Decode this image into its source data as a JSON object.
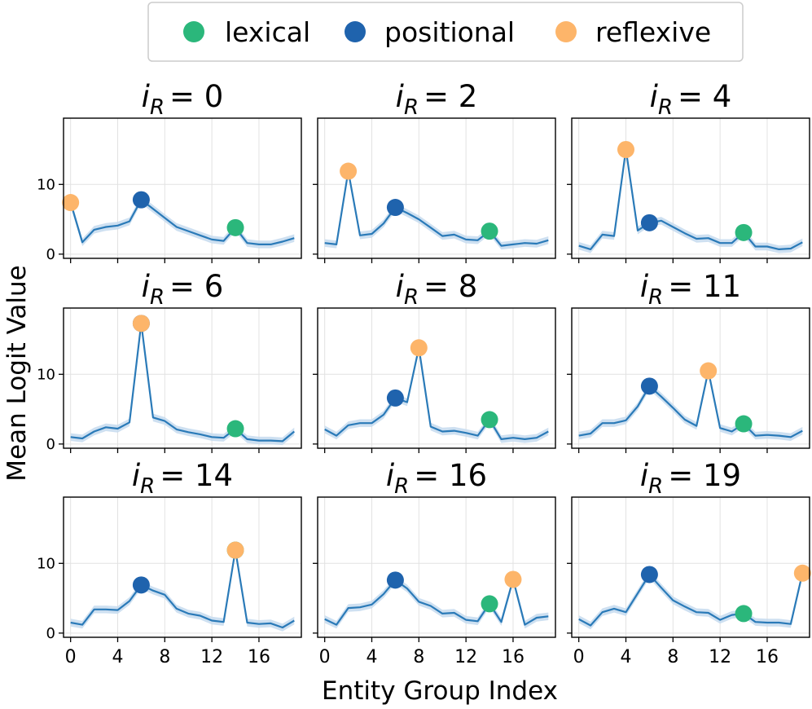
{
  "figure": {
    "ylabel": "Mean Logit Value",
    "xlabel": "Entity Group Index"
  },
  "legend": [
    {
      "label": "lexical",
      "color": "#2bb77b"
    },
    {
      "label": "positional",
      "color": "#1f63ad"
    },
    {
      "label": "reflexive",
      "color": "#fdb56a"
    }
  ],
  "colors": {
    "line": "#2a7ab8",
    "band": "#c6dbef",
    "grid": "#e2e2e2"
  },
  "chart_data": [
    {
      "type": "line",
      "title_var": "i",
      "title_sub": "R",
      "title_eq": "= 0",
      "x": [
        0,
        1,
        2,
        3,
        4,
        5,
        6,
        7,
        8,
        9,
        10,
        11,
        12,
        13,
        14,
        15,
        16,
        17,
        18,
        19
      ],
      "y": [
        7.4,
        1.7,
        3.5,
        3.9,
        4.1,
        4.7,
        7.8,
        6.5,
        5.2,
        3.9,
        3.3,
        2.7,
        2.1,
        1.9,
        3.8,
        1.6,
        1.4,
        1.4,
        1.8,
        2.3
      ],
      "markers": {
        "lexical": [
          14,
          3.8
        ],
        "positional": [
          6,
          7.8
        ],
        "reflexive": [
          0,
          7.4
        ]
      },
      "xticks": [
        0,
        4,
        8,
        12,
        16
      ],
      "yticks": [
        0,
        10
      ],
      "ylim": [
        -0.6,
        19.5
      ],
      "xlim": [
        -0.6,
        19.6
      ]
    },
    {
      "type": "line",
      "title_var": "i",
      "title_sub": "R",
      "title_eq": "= 2",
      "x": [
        0,
        1,
        2,
        3,
        4,
        5,
        6,
        7,
        8,
        9,
        10,
        11,
        12,
        13,
        14,
        15,
        16,
        17,
        18,
        19
      ],
      "y": [
        1.6,
        1.4,
        11.9,
        2.7,
        2.9,
        4.4,
        6.7,
        5.9,
        5.0,
        3.8,
        2.6,
        2.8,
        2.1,
        2.0,
        3.3,
        1.2,
        1.4,
        1.6,
        1.5,
        2.0
      ],
      "markers": {
        "lexical": [
          14,
          3.3
        ],
        "positional": [
          6,
          6.7
        ],
        "reflexive": [
          2,
          11.9
        ]
      },
      "xticks": [
        0,
        4,
        8,
        12,
        16
      ],
      "yticks": [
        0,
        10
      ],
      "ylim": [
        -0.6,
        19.5
      ],
      "xlim": [
        -0.6,
        19.6
      ]
    },
    {
      "type": "line",
      "title_var": "i",
      "title_sub": "R",
      "title_eq": "= 4",
      "x": [
        0,
        1,
        2,
        3,
        4,
        5,
        6,
        7,
        8,
        9,
        10,
        11,
        12,
        13,
        14,
        15,
        16,
        17,
        18,
        19
      ],
      "y": [
        1.2,
        0.7,
        2.8,
        2.6,
        15.0,
        3.4,
        4.5,
        4.8,
        3.9,
        3.0,
        2.2,
        2.3,
        1.6,
        1.6,
        3.1,
        1.1,
        1.1,
        0.7,
        0.8,
        1.7
      ],
      "markers": {
        "lexical": [
          14,
          3.1
        ],
        "positional": [
          6,
          4.5
        ],
        "reflexive": [
          4,
          15.0
        ]
      },
      "xticks": [
        0,
        4,
        8,
        12,
        16
      ],
      "yticks": [
        0,
        10
      ],
      "ylim": [
        -0.6,
        19.5
      ],
      "xlim": [
        -0.6,
        19.6
      ]
    },
    {
      "type": "line",
      "title_var": "i",
      "title_sub": "R",
      "title_eq": "= 6",
      "x": [
        0,
        1,
        2,
        3,
        4,
        5,
        6,
        7,
        8,
        9,
        10,
        11,
        12,
        13,
        14,
        15,
        16,
        17,
        18,
        19
      ],
      "y": [
        1.0,
        0.8,
        1.8,
        2.4,
        2.2,
        3.1,
        17.3,
        3.8,
        3.3,
        2.1,
        1.7,
        1.4,
        1.0,
        0.9,
        2.2,
        0.7,
        0.5,
        0.5,
        0.4,
        1.8
      ],
      "markers": {
        "lexical": [
          14,
          2.2
        ],
        "positional": [
          6,
          17.3
        ],
        "reflexive": [
          6,
          17.3
        ]
      },
      "xticks": [
        0,
        4,
        8,
        12,
        16
      ],
      "yticks": [
        0,
        10
      ],
      "ylim": [
        -0.6,
        19.5
      ],
      "xlim": [
        -0.6,
        19.6
      ]
    },
    {
      "type": "line",
      "title_var": "i",
      "title_sub": "R",
      "title_eq": "= 8",
      "x": [
        0,
        1,
        2,
        3,
        4,
        5,
        6,
        7,
        8,
        9,
        10,
        11,
        12,
        13,
        14,
        15,
        16,
        17,
        18,
        19
      ],
      "y": [
        2.1,
        1.2,
        2.7,
        3.0,
        3.0,
        4.2,
        6.6,
        6.0,
        13.8,
        2.5,
        1.8,
        1.9,
        1.6,
        1.2,
        3.5,
        0.7,
        0.9,
        0.7,
        0.9,
        1.8
      ],
      "markers": {
        "lexical": [
          14,
          3.5
        ],
        "positional": [
          6,
          6.6
        ],
        "reflexive": [
          8,
          13.8
        ]
      },
      "xticks": [
        0,
        4,
        8,
        12,
        16
      ],
      "yticks": [
        0,
        10
      ],
      "ylim": [
        -0.6,
        19.5
      ],
      "xlim": [
        -0.6,
        19.6
      ]
    },
    {
      "type": "line",
      "title_var": "i",
      "title_sub": "R",
      "title_eq": "= 11",
      "x": [
        0,
        1,
        2,
        3,
        4,
        5,
        6,
        7,
        8,
        9,
        10,
        11,
        12,
        13,
        14,
        15,
        16,
        17,
        18,
        19
      ],
      "y": [
        1.2,
        1.5,
        3.0,
        3.0,
        3.4,
        5.4,
        8.3,
        6.8,
        5.2,
        3.5,
        2.6,
        10.5,
        2.3,
        1.8,
        2.9,
        1.2,
        1.3,
        1.2,
        1.0,
        1.9
      ],
      "markers": {
        "lexical": [
          14,
          2.9
        ],
        "positional": [
          6,
          8.3
        ],
        "reflexive": [
          11,
          10.5
        ]
      },
      "xticks": [
        0,
        4,
        8,
        12,
        16
      ],
      "yticks": [
        0,
        10
      ],
      "ylim": [
        -0.6,
        19.5
      ],
      "xlim": [
        -0.6,
        19.6
      ]
    },
    {
      "type": "line",
      "title_var": "i",
      "title_sub": "R",
      "title_eq": "= 14",
      "x": [
        0,
        1,
        2,
        3,
        4,
        5,
        6,
        7,
        8,
        9,
        10,
        11,
        12,
        13,
        14,
        15,
        16,
        17,
        18,
        19
      ],
      "y": [
        1.5,
        1.2,
        3.4,
        3.4,
        3.3,
        4.6,
        6.9,
        6.1,
        5.5,
        3.5,
        2.8,
        2.5,
        1.8,
        1.6,
        11.9,
        1.5,
        1.3,
        1.4,
        0.8,
        1.8
      ],
      "markers": {
        "lexical": [
          14,
          11.9
        ],
        "positional": [
          6,
          6.9
        ],
        "reflexive": [
          14,
          11.9
        ]
      },
      "xticks": [
        0,
        4,
        8,
        12,
        16
      ],
      "yticks": [
        0,
        10
      ],
      "ylim": [
        -0.6,
        19.5
      ],
      "xlim": [
        -0.6,
        19.6
      ]
    },
    {
      "type": "line",
      "title_var": "i",
      "title_sub": "R",
      "title_eq": "= 16",
      "x": [
        0,
        1,
        2,
        3,
        4,
        5,
        6,
        7,
        8,
        9,
        10,
        11,
        12,
        13,
        14,
        15,
        16,
        17,
        18,
        19
      ],
      "y": [
        2.0,
        1.2,
        3.6,
        3.7,
        4.1,
        5.6,
        7.6,
        6.4,
        4.5,
        3.9,
        2.8,
        2.9,
        1.9,
        1.7,
        4.2,
        1.6,
        7.7,
        1.2,
        2.2,
        2.4
      ],
      "markers": {
        "lexical": [
          14,
          4.2
        ],
        "positional": [
          6,
          7.6
        ],
        "reflexive": [
          16,
          7.7
        ]
      },
      "xticks": [
        0,
        4,
        8,
        12,
        16
      ],
      "yticks": [
        0,
        10
      ],
      "ylim": [
        -0.6,
        19.5
      ],
      "xlim": [
        -0.6,
        19.6
      ]
    },
    {
      "type": "line",
      "title_var": "i",
      "title_sub": "R",
      "title_eq": "= 19",
      "x": [
        0,
        1,
        2,
        3,
        4,
        5,
        6,
        7,
        8,
        9,
        10,
        11,
        12,
        13,
        14,
        15,
        16,
        17,
        18,
        19
      ],
      "y": [
        2.0,
        1.1,
        3.0,
        3.5,
        3.0,
        5.7,
        8.4,
        6.5,
        4.7,
        3.8,
        3.0,
        2.9,
        1.9,
        2.6,
        2.8,
        1.6,
        1.5,
        1.5,
        1.3,
        8.6
      ],
      "markers": {
        "lexical": [
          14,
          2.8
        ],
        "positional": [
          6,
          8.4
        ],
        "reflexive": [
          19,
          8.6
        ]
      },
      "xticks": [
        0,
        4,
        8,
        12,
        16
      ],
      "yticks": [
        0,
        10
      ],
      "ylim": [
        -0.6,
        19.5
      ],
      "xlim": [
        -0.6,
        19.6
      ]
    }
  ]
}
